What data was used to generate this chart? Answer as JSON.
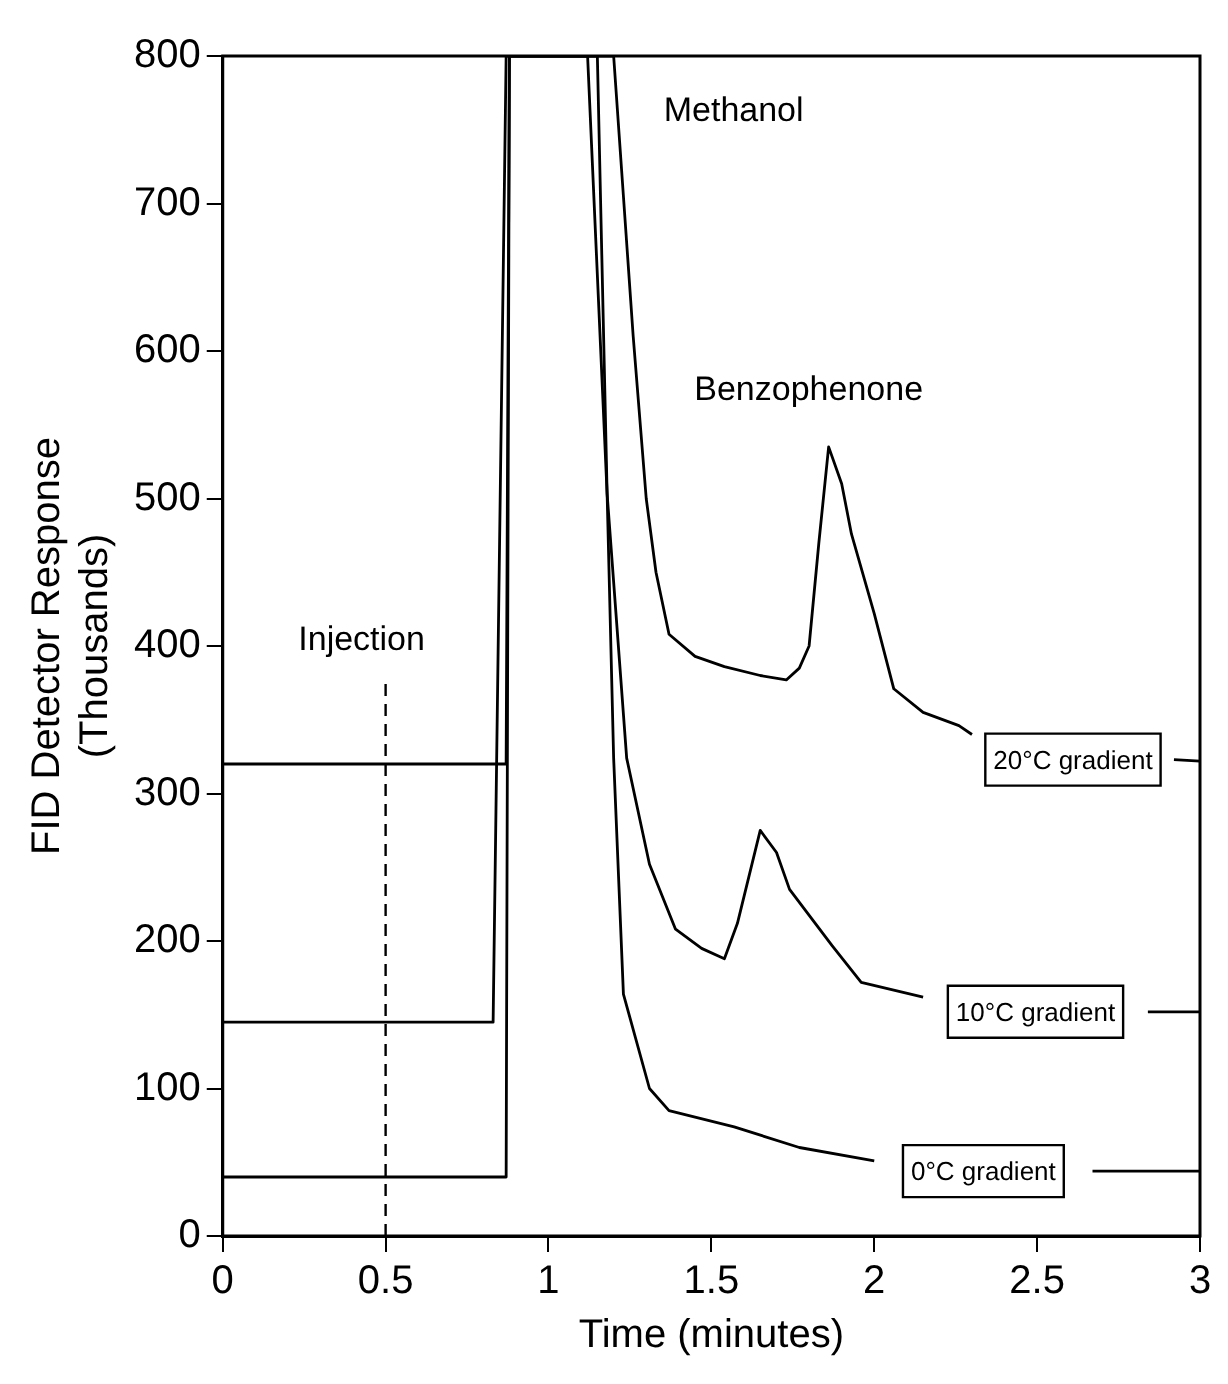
{
  "chart_data": {
    "type": "line",
    "xlabel": "Time (minutes)",
    "ylabel": "FID Detector Response\n(Thousands)",
    "xlim": [
      0,
      3
    ],
    "ylim": [
      0,
      800
    ],
    "xticks": [
      0,
      0.5,
      1,
      1.5,
      2,
      2.5,
      3
    ],
    "yticks": [
      0,
      100,
      200,
      300,
      400,
      500,
      600,
      700,
      800
    ],
    "grid": false,
    "legend": false,
    "marker": "none",
    "line_style": "solid",
    "series": [
      {
        "name": "20°C gradient",
        "color": "#000000",
        "x": [
          0,
          0.87,
          0.88,
          1.2,
          1.26,
          1.3,
          1.33,
          1.37,
          1.45,
          1.54,
          1.65,
          1.73,
          1.77,
          1.8,
          1.83,
          1.86,
          1.9,
          1.93,
          2.0,
          2.06,
          2.15,
          2.26,
          2.3,
          2.6,
          2.92,
          3
        ],
        "values": [
          320,
          320,
          800,
          800,
          610,
          500,
          450,
          408,
          393,
          386,
          380,
          377,
          385,
          400,
          470,
          535,
          510,
          476,
          422,
          371,
          355,
          346,
          340,
          null,
          323,
          322
        ]
      },
      {
        "name": "10°C gradient",
        "color": "#000000",
        "x": [
          0,
          0.83,
          0.87,
          1.15,
          1.18,
          1.24,
          1.31,
          1.39,
          1.47,
          1.54,
          1.58,
          1.65,
          1.7,
          1.74,
          1.87,
          1.96,
          2.15,
          2.5,
          2.84,
          3
        ],
        "values": [
          145,
          145,
          800,
          800,
          503,
          324,
          252,
          208,
          195,
          188,
          212,
          275,
          260,
          235,
          197,
          172,
          162,
          null,
          152,
          152
        ]
      },
      {
        "name": "0°C gradient",
        "color": "#000000",
        "x": [
          0,
          0.87,
          0.88,
          1.12,
          1.18,
          1.2,
          1.23,
          1.31,
          1.37,
          1.57,
          1.77,
          2.0,
          2.3,
          2.67,
          3
        ],
        "values": [
          40,
          40,
          800,
          800,
          503,
          324,
          164,
          100,
          85,
          74,
          60,
          51,
          null,
          44,
          44
        ]
      }
    ],
    "ref_lines": [
      {
        "axis": "x",
        "value": 0.5,
        "label": "Injection",
        "line_style": "dashed",
        "color": "#000000"
      }
    ],
    "annotations": [
      {
        "text": "Methanol",
        "x": 1.2,
        "y": 800
      },
      {
        "text": "Benzophenone",
        "x": 1.86,
        "y": 535
      }
    ]
  }
}
